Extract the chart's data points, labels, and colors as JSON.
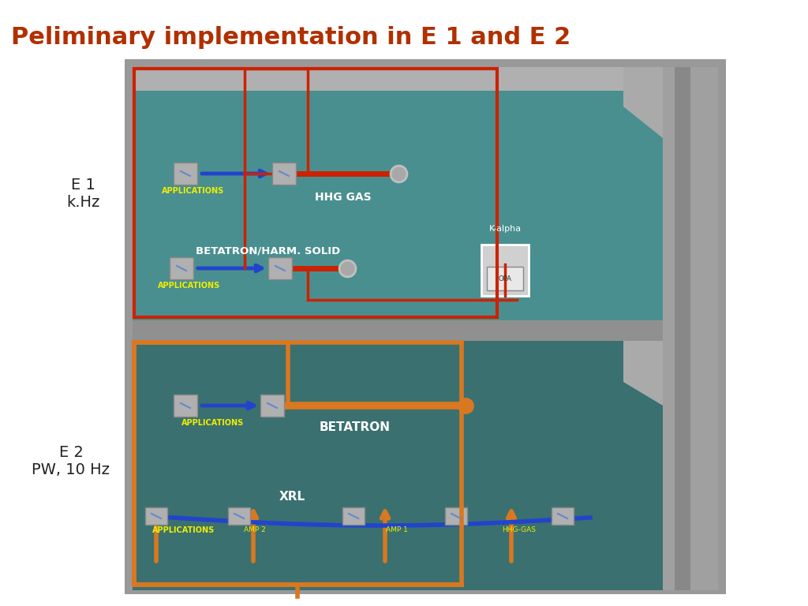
{
  "title": "Peliminary implementation in E 1 and E 2",
  "title_color": "#b03000",
  "title_fontsize": 22,
  "bg_color": "#ffffff",
  "label_e1_line1": "E 1",
  "label_e1_line2": "k.Hz",
  "label_e2_line1": "E 2",
  "label_e2_line2": "PW, 10 Hz",
  "label_fontsize": 13,
  "label_color": "#222222",
  "outer_gray": "#888888",
  "wall_gray": "#999999",
  "wall_dark": "#777777",
  "teal": "#4a8f8f",
  "teal_dark": "#3a7070",
  "shelf_gray": "#909090",
  "e1_border": "#cc2200",
  "e2_border": "#d97820",
  "blue_beam": "#2244cc",
  "red_beam": "#cc2200",
  "orange_beam": "#d97820",
  "component_gray": "#b0b0b0",
  "component_edge": "#888888",
  "yellow_label": "#eeee00",
  "white_text": "#ffffff",
  "logo_dark_orange": "#c03010",
  "logo_mid_orange": "#d84020",
  "logo_light_orange": "#e86040"
}
